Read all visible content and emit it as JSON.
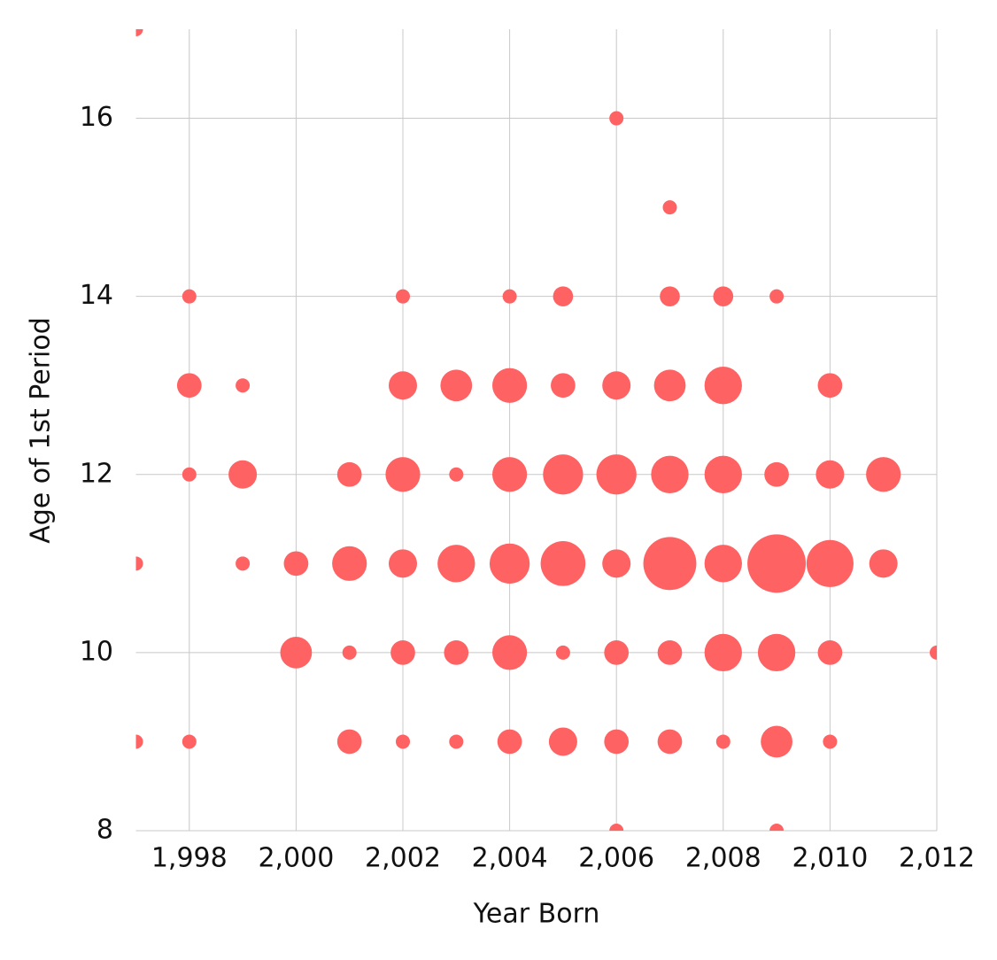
{
  "chart_data": {
    "type": "scatter",
    "xlabel": "Year Born",
    "ylabel": "Age of 1st Period",
    "xlim": [
      1997,
      2012
    ],
    "ylim": [
      8,
      17
    ],
    "xticks": [
      {
        "value": 1998,
        "label": "1,998"
      },
      {
        "value": 2000,
        "label": "2,000"
      },
      {
        "value": 2002,
        "label": "2,002"
      },
      {
        "value": 2004,
        "label": "2,004"
      },
      {
        "value": 2006,
        "label": "2,006"
      },
      {
        "value": 2008,
        "label": "2,008"
      },
      {
        "value": 2010,
        "label": "2,010"
      },
      {
        "value": 2012,
        "label": "2,012"
      }
    ],
    "yticks": [
      8,
      10,
      12,
      14,
      16
    ],
    "grid": true,
    "color": "#ff6262",
    "x": [
      1997,
      2006,
      2007,
      1998,
      2002,
      2004,
      2005,
      2007,
      2008,
      2009,
      1998,
      1999,
      2002,
      2003,
      2004,
      2005,
      2006,
      2007,
      2008,
      2010,
      1998,
      1999,
      2001,
      2002,
      2003,
      2004,
      2005,
      2006,
      2007,
      2008,
      2009,
      2010,
      2011,
      1997,
      1999,
      2000,
      2001,
      2002,
      2003,
      2004,
      2005,
      2006,
      2007,
      2008,
      2009,
      2010,
      2011,
      2000,
      2001,
      2002,
      2003,
      2004,
      2005,
      2006,
      2007,
      2008,
      2009,
      2010,
      2012,
      1997,
      1998,
      2001,
      2002,
      2003,
      2004,
      2005,
      2006,
      2007,
      2008,
      2009,
      2010,
      2006,
      2009
    ],
    "values": [
      17,
      16,
      15,
      14,
      14,
      14,
      14,
      14,
      14,
      14,
      13,
      13,
      13,
      13,
      13,
      13,
      13,
      13,
      13,
      13,
      12,
      12,
      12,
      12,
      12,
      12,
      12,
      12,
      12,
      12,
      12,
      12,
      12,
      11,
      11,
      11,
      11,
      11,
      11,
      11,
      11,
      11,
      11,
      11,
      11,
      11,
      11,
      10,
      10,
      10,
      10,
      10,
      10,
      10,
      10,
      10,
      10,
      10,
      10,
      9,
      9,
      9,
      9,
      9,
      9,
      9,
      9,
      9,
      9,
      9,
      9,
      8,
      8
    ],
    "sizes": [
      1,
      1,
      1,
      1,
      1,
      1,
      2,
      2,
      2,
      1,
      3,
      1,
      4,
      5,
      6,
      3,
      4,
      5,
      7,
      3,
      1,
      4,
      3,
      6,
      1,
      6,
      8,
      8,
      7,
      7,
      3,
      4,
      6,
      1,
      1,
      3,
      6,
      4,
      7,
      8,
      10,
      4,
      14,
      7,
      17,
      11,
      4,
      5,
      1,
      3,
      3,
      6,
      1,
      3,
      3,
      7,
      7,
      3,
      1,
      1,
      1,
      3,
      1,
      1,
      3,
      4,
      3,
      3,
      1,
      5,
      1,
      1,
      1
    ]
  }
}
